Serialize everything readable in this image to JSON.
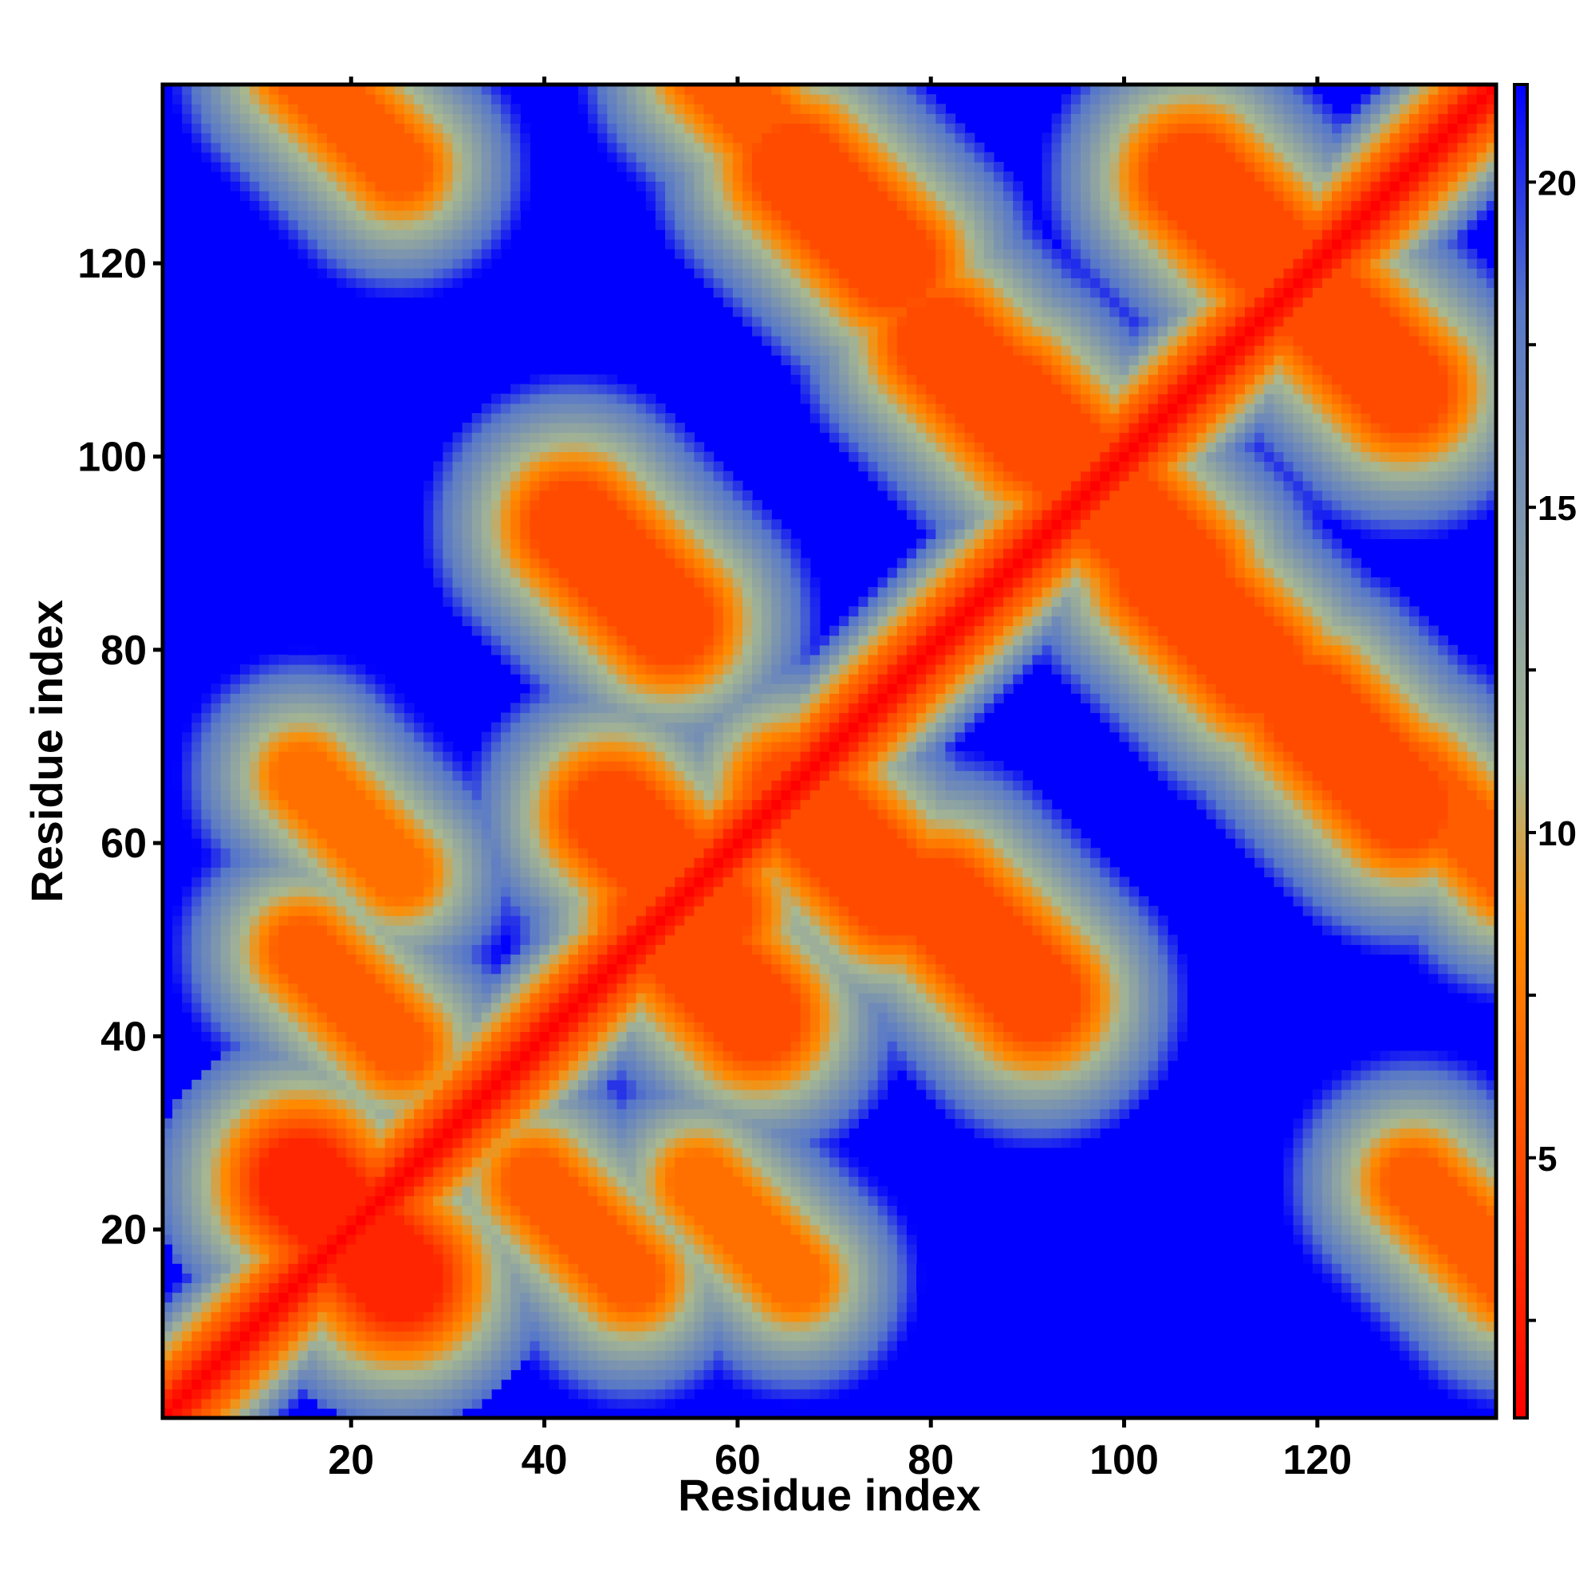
{
  "chart_data": {
    "type": "heatmap",
    "title": "",
    "xlabel": "Residue index",
    "ylabel": "Residue index",
    "xlim": [
      1,
      138
    ],
    "ylim": [
      1,
      138
    ],
    "x_ticks": [
      "20",
      "40",
      "60",
      "80",
      "100",
      "120"
    ],
    "y_ticks": [
      "20",
      "40",
      "60",
      "80",
      "100",
      "120"
    ],
    "colorbar": {
      "range": [
        1,
        21.5
      ],
      "ticks": [
        "5",
        "10",
        "15",
        "20"
      ],
      "colors": [
        "#ff0000",
        "#ff8c00",
        "#a8b890",
        "#5878c8",
        "#0000ff"
      ],
      "stops": [
        1,
        8.5,
        11,
        18,
        21.5
      ]
    },
    "diagonal_band_values_at_offset": [
      0,
      2,
      3,
      5,
      6,
      7,
      9,
      10,
      12,
      14,
      16,
      18,
      20,
      21.5
    ],
    "contact_regions": [
      {
        "x": 20,
        "y": 20,
        "value": 3,
        "width": 3
      },
      {
        "x": 52,
        "y": 58,
        "value": 5,
        "width": 3
      },
      {
        "x": 57,
        "y": 47,
        "value": 5,
        "width": 3
      },
      {
        "x": 71,
        "y": 60,
        "value": 5,
        "width": 3
      },
      {
        "x": 86,
        "y": 49,
        "value": 5,
        "width": 3
      },
      {
        "x": 93,
        "y": 101,
        "value": 5,
        "width": 3
      },
      {
        "x": 101,
        "y": 93,
        "value": 5,
        "width": 3
      },
      {
        "x": 109,
        "y": 83,
        "value": 5,
        "width": 3
      },
      {
        "x": 112,
        "y": 124,
        "value": 5,
        "width": 3
      },
      {
        "x": 124,
        "y": 112,
        "value": 5,
        "width": 3
      },
      {
        "x": 124,
        "y": 69,
        "value": 5,
        "width": 3
      },
      {
        "x": 86,
        "y": 107,
        "value": 5,
        "width": 3
      },
      {
        "x": 71,
        "y": 125,
        "value": 5,
        "width": 3
      },
      {
        "x": 48,
        "y": 88,
        "value": 5,
        "width": 3
      },
      {
        "x": 20,
        "y": 44,
        "value": 6,
        "width": 2
      },
      {
        "x": 44,
        "y": 20,
        "value": 6,
        "width": 2
      },
      {
        "x": 20,
        "y": 62,
        "value": 7,
        "width": 2
      },
      {
        "x": 20,
        "y": 135,
        "value": 6,
        "width": 2
      },
      {
        "x": 62,
        "y": 135,
        "value": 6,
        "width": 2
      },
      {
        "x": 61,
        "y": 20,
        "value": 7,
        "width": 2
      },
      {
        "x": 135,
        "y": 20,
        "value": 6,
        "width": 2
      },
      {
        "x": 135,
        "y": 62,
        "value": 6,
        "width": 2
      }
    ]
  }
}
